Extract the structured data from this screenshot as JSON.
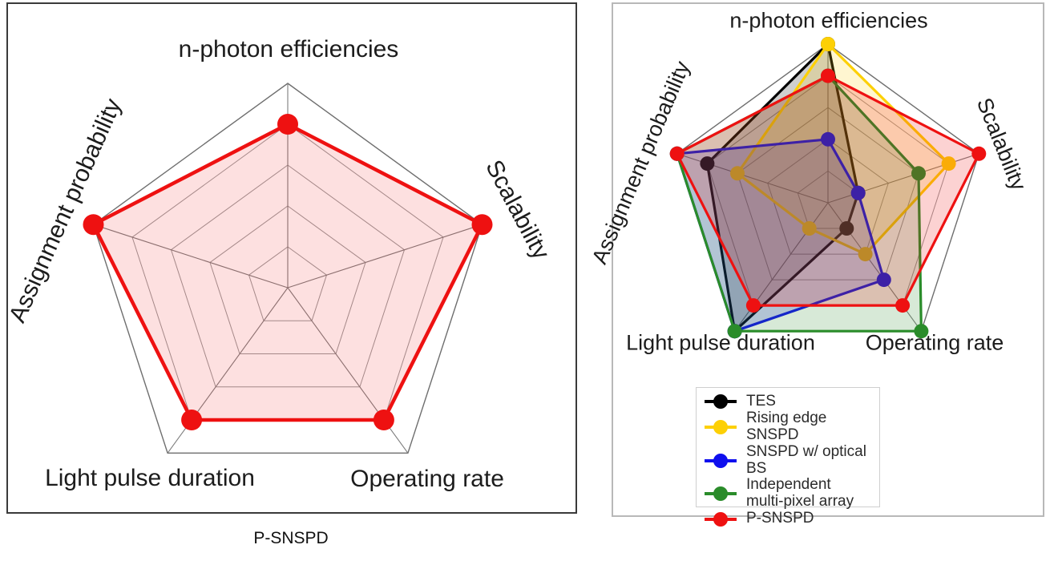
{
  "captions": {
    "left": "P-SNSPD"
  },
  "grid_color": "#9a9a9a",
  "chart_data": [
    {
      "type": "radar",
      "title": "P-SNSPD",
      "axes": [
        "n-photon efficiencies",
        "Scalability",
        "Operating rate",
        "Light pulse duration",
        "Assignment probability"
      ],
      "scale": {
        "min": 0,
        "max": 1,
        "rings": [
          0.2,
          0.4,
          0.6,
          0.8,
          1.0
        ]
      },
      "grid": true,
      "legend": null,
      "series": [
        {
          "name": "P-SNSPD",
          "color": "#ee1111",
          "values": [
            0.8,
            1.0,
            0.8,
            0.8,
            1.0
          ]
        }
      ]
    },
    {
      "type": "radar",
      "title": "",
      "axes": [
        "n-photon efficiencies",
        "Scalability",
        "Operating rate",
        "Light pulse duration",
        "Assignment probability"
      ],
      "scale": {
        "min": 0,
        "max": 1,
        "rings": [
          0.2,
          0.4,
          0.6,
          0.8,
          1.0
        ]
      },
      "grid": true,
      "legend": {
        "position": "bottom-center"
      },
      "series": [
        {
          "name": "TES",
          "color": "#000000",
          "values": [
            1.0,
            0.2,
            0.2,
            1.0,
            0.8
          ]
        },
        {
          "name": "Rising edge SNSPD",
          "color": "#fdd005",
          "values": [
            1.0,
            0.8,
            0.4,
            0.2,
            0.6
          ]
        },
        {
          "name": "SNSPD w/ optical BS",
          "color": "#0f0fee",
          "values": [
            0.4,
            0.2,
            0.6,
            1.0,
            1.0
          ]
        },
        {
          "name": "Independent multi-pixel array",
          "color": "#2a8c2a",
          "values": [
            0.8,
            0.6,
            1.0,
            1.0,
            1.0
          ]
        },
        {
          "name": "P-SNSPD",
          "color": "#ee1111",
          "values": [
            0.8,
            1.0,
            0.8,
            0.8,
            1.0
          ]
        }
      ]
    }
  ]
}
